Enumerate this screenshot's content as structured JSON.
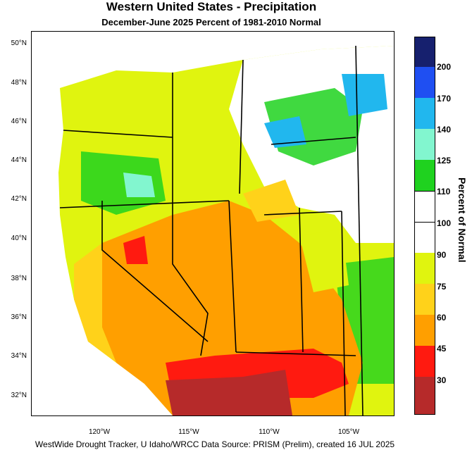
{
  "header": {
    "title": "Western United States - Precipitation",
    "subtitle": "December-June 2025  Percent of 1981-2010 Normal"
  },
  "axes": {
    "lat_labels": [
      "50°N",
      "48°N",
      "46°N",
      "44°N",
      "42°N",
      "40°N",
      "38°N",
      "36°N",
      "34°N",
      "32°N"
    ],
    "lon_labels": [
      "120°W",
      "115°W",
      "110°W",
      "105°W"
    ]
  },
  "legend": {
    "title": "Percent of Normal",
    "ticks": [
      "200",
      "170",
      "140",
      "125",
      "110",
      "100",
      "90",
      "75",
      "60",
      "45",
      "30"
    ],
    "colors": [
      "#16206e",
      "#1f4ff2",
      "#21b7ee",
      "#82f6cf",
      "#1fd21f",
      "#ffffff",
      "#ffffff",
      "#e0f40f",
      "#ffd21a",
      "#ff9f00",
      "#ff1a10",
      "#b62a2a"
    ]
  },
  "footer": "WestWide Drought Tracker, U Idaho/WRCC Data Source: PRISM (Prelim), created 16 JUL 2025"
}
